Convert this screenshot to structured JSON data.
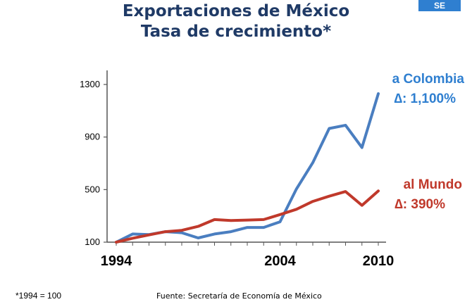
{
  "header": {
    "title_line1": "Exportaciones de México",
    "title_line2": "Tasa de crecimiento*",
    "badge": "SE"
  },
  "footer": {
    "footnote": "*1994 = 100",
    "source": "Fuente: Secretaría de Economía de México"
  },
  "colors": {
    "colombia": "#4a7ec0",
    "mundo": "#c0392b",
    "title": "#1f3a66"
  },
  "chart_data": {
    "type": "line",
    "title": "Exportaciones de México Tasa de crecimiento*",
    "xlabel": "",
    "ylabel": "",
    "x": [
      1994,
      1995,
      1996,
      1997,
      1998,
      1999,
      2000,
      2001,
      2002,
      2003,
      2004,
      2005,
      2006,
      2007,
      2008,
      2009,
      2010
    ],
    "xlim": [
      1994,
      2010
    ],
    "ylim": [
      100,
      1300
    ],
    "yticks": [
      100,
      500,
      900,
      1300
    ],
    "xtick_labels": [
      "1994",
      "2004",
      "2010"
    ],
    "xtick_values": [
      1994,
      2004,
      2010
    ],
    "series": [
      {
        "name": "a Colombia",
        "annotation": "a Colombia",
        "delta": "∆: 1,100%",
        "color": "#4a7ec0",
        "values": [
          100,
          162,
          158,
          180,
          172,
          132,
          162,
          180,
          212,
          212,
          255,
          505,
          705,
          965,
          990,
          820,
          1230
        ]
      },
      {
        "name": "al Mundo",
        "annotation": "al Mundo",
        "delta": "∆: 390%",
        "color": "#c0392b",
        "values": [
          100,
          130,
          155,
          180,
          190,
          220,
          272,
          265,
          268,
          272,
          310,
          350,
          410,
          450,
          485,
          380,
          490
        ]
      }
    ],
    "grid": false,
    "legend": "none"
  }
}
